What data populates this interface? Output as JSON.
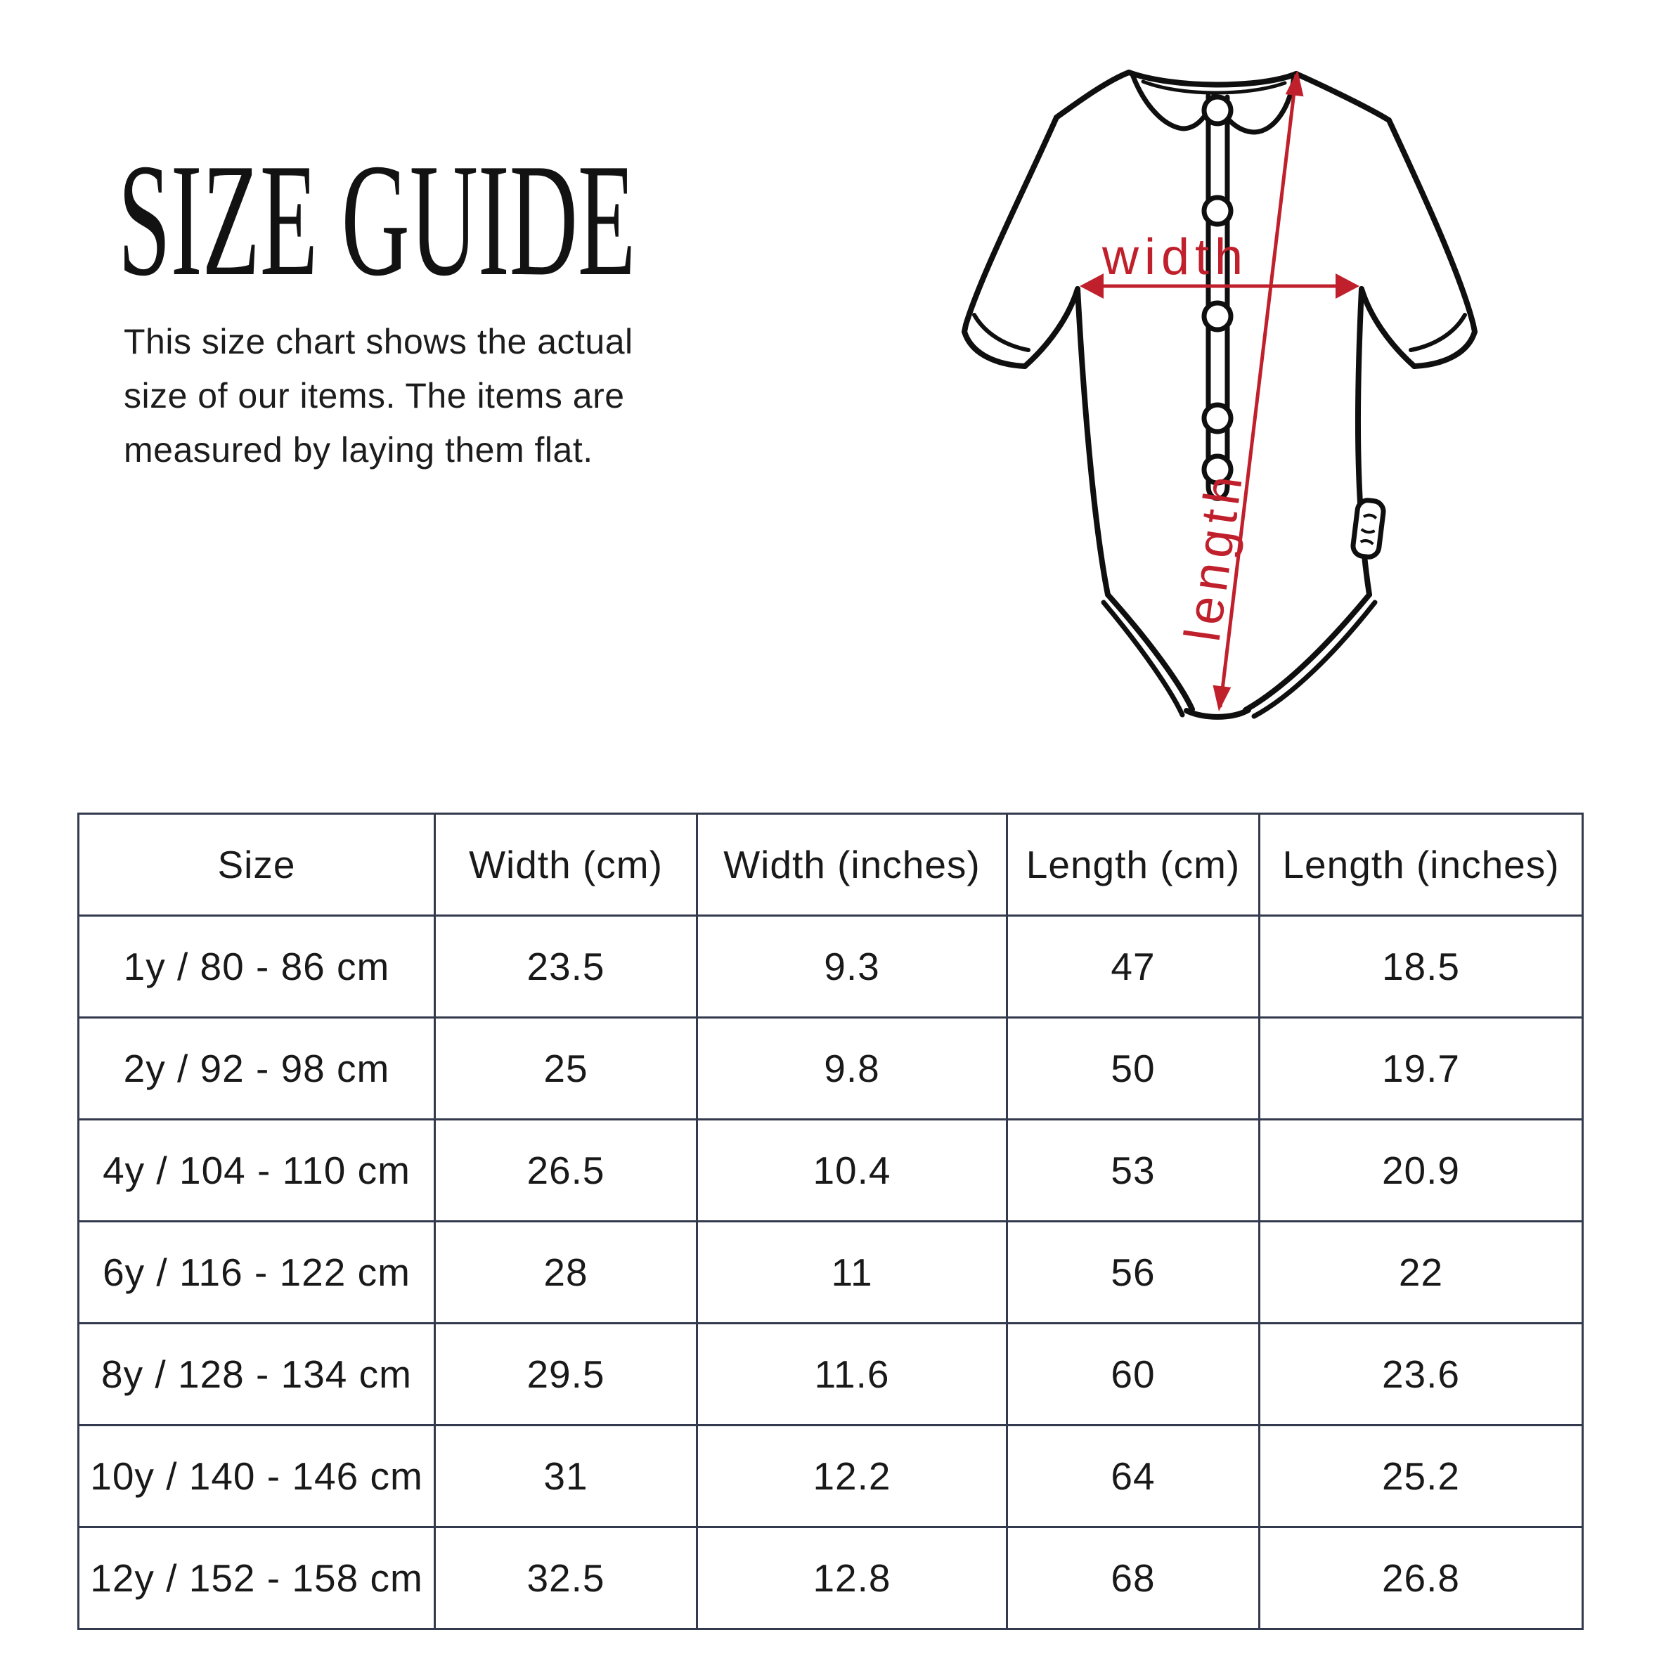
{
  "header": {
    "title": "SIZE GUIDE",
    "description": "This size chart shows the actual size of our items. The items are measured by laying them flat."
  },
  "diagram": {
    "garment": "short-sleeve-bodysuit-back-view-line-art",
    "width_label": "width",
    "length_label": "length",
    "accent_color": "#c0202c",
    "outline_color": "#0f0f0f"
  },
  "table": {
    "border_color": "#333a4d",
    "headers": [
      "Size",
      "Width (cm)",
      "Width (inches)",
      "Length (cm)",
      "Length (inches)"
    ],
    "rows": [
      [
        "1y / 80 - 86 cm",
        "23.5",
        "9.3",
        "47",
        "18.5"
      ],
      [
        "2y / 92 - 98 cm",
        "25",
        "9.8",
        "50",
        "19.7"
      ],
      [
        "4y / 104 - 110 cm",
        "26.5",
        "10.4",
        "53",
        "20.9"
      ],
      [
        "6y / 116 - 122 cm",
        "28",
        "11",
        "56",
        "22"
      ],
      [
        "8y / 128 - 134 cm",
        "29.5",
        "11.6",
        "60",
        "23.6"
      ],
      [
        "10y / 140 - 146 cm",
        "31",
        "12.2",
        "64",
        "25.2"
      ],
      [
        "12y / 152 - 158 cm",
        "32.5",
        "12.8",
        "68",
        "26.8"
      ]
    ]
  }
}
